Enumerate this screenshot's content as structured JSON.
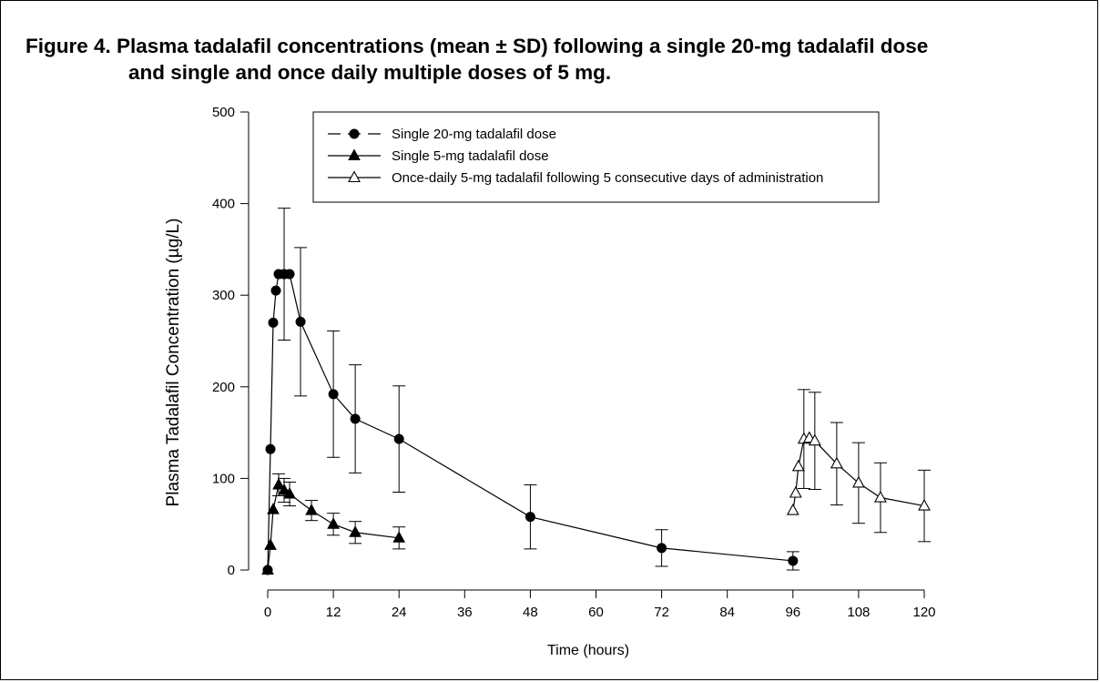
{
  "figure": {
    "title_line1": "Figure 4. Plasma tadalafil concentrations (mean ± SD) following a single 20-mg tadalafil dose",
    "title_line2": "and single and once daily multiple doses of 5 mg."
  },
  "chart_data": {
    "type": "line",
    "xlabel": "Time (hours)",
    "ylabel": "Plasma Tadalafil Concentration (µg/L)",
    "xlim": [
      0,
      120
    ],
    "ylim": [
      0,
      500
    ],
    "xticks": [
      0,
      12,
      24,
      36,
      48,
      60,
      72,
      84,
      96,
      108,
      120
    ],
    "yticks": [
      0,
      100,
      200,
      300,
      400,
      500
    ],
    "grid": false,
    "legend_position": "top-center",
    "series": [
      {
        "name": "Single 20-mg tadalafil dose",
        "marker": "filled-circle",
        "line_style": "dashed",
        "color": "#000000",
        "x": [
          0,
          0.5,
          1,
          1.5,
          2,
          3,
          4,
          6,
          12,
          16,
          24,
          48,
          72,
          96
        ],
        "y": [
          0,
          132,
          270,
          305,
          323,
          323,
          323,
          271,
          192,
          165,
          143,
          58,
          24,
          10
        ],
        "sd": [
          0,
          0,
          0,
          0,
          0,
          72,
          0,
          81,
          69,
          59,
          58,
          35,
          20,
          10
        ]
      },
      {
        "name": "Single 5-mg tadalafil dose",
        "marker": "filled-triangle",
        "line_style": "solid",
        "color": "#000000",
        "x": [
          0,
          0.5,
          1,
          2,
          3,
          4,
          8,
          12,
          16,
          24
        ],
        "y": [
          0,
          27,
          66,
          93,
          87,
          83,
          65,
          50,
          41,
          35
        ],
        "sd": [
          0,
          0,
          0,
          12,
          13,
          13,
          11,
          12,
          12,
          12
        ]
      },
      {
        "name": "Once-daily 5-mg tadalafil following 5 consecutive days of administration",
        "marker": "open-triangle",
        "line_style": "solid",
        "color": "#000000",
        "x": [
          96,
          96.5,
          97,
          98,
          99,
          100,
          104,
          108,
          112,
          120
        ],
        "y": [
          65,
          84,
          113,
          143,
          144,
          141,
          116,
          95,
          79,
          70
        ],
        "sd": [
          0,
          0,
          0,
          54,
          0,
          53,
          45,
          44,
          38,
          39
        ]
      }
    ]
  }
}
